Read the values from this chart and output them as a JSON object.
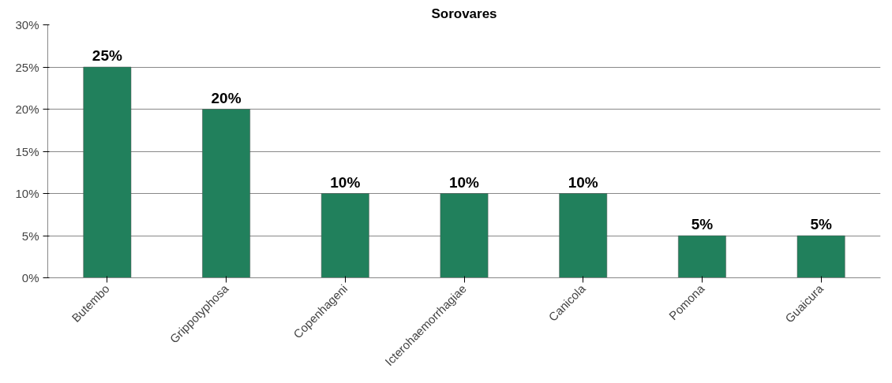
{
  "chart_data": {
    "type": "bar",
    "title": "Sorovares",
    "categories": [
      "Butembo",
      "Grippotyphosa",
      "Copenhageni",
      "Icterohaemorrhagiae",
      "Canicola",
      "Pomona",
      "Guaicura"
    ],
    "values": [
      25,
      20,
      10,
      10,
      10,
      5,
      5
    ],
    "value_labels": [
      "25%",
      "20%",
      "10%",
      "10%",
      "10%",
      "5%",
      "5%"
    ],
    "color": "#21805c",
    "ylim": [
      0,
      30
    ],
    "yticks": [
      {
        "value": 0,
        "label": "0%"
      },
      {
        "value": 5,
        "label": "5%"
      },
      {
        "value": 10,
        "label": "10%"
      },
      {
        "value": 15,
        "label": "15%"
      },
      {
        "value": 20,
        "label": "20%"
      },
      {
        "value": 25,
        "label": "25%"
      },
      {
        "value": 30,
        "label": "30%"
      }
    ],
    "grid": "y"
  }
}
